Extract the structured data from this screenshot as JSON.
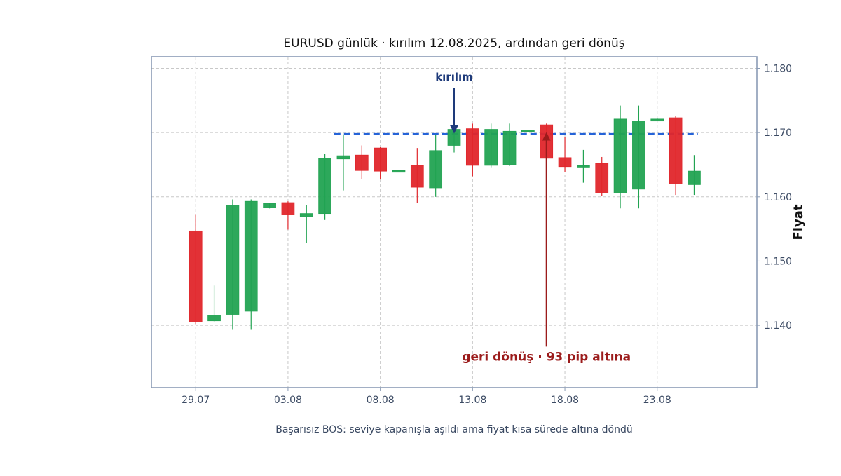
{
  "chart_data": {
    "type": "candlestick",
    "title": "EURUSD günlük · kırılım 12.08.2025, ardından geri dönüş",
    "subtitle": "Başarısız BOS: seviye kapanışla aşıldı ama fiyat kısa sürede altına döndü",
    "ylabel": "Fiyat",
    "xlabel": "",
    "ylim": [
      1.1303,
      1.1818
    ],
    "y_ticks": [
      1.14,
      1.15,
      1.16,
      1.17,
      1.18
    ],
    "y_tick_labels": [
      "1.140",
      "1.150",
      "1.160",
      "1.170",
      "1.180"
    ],
    "x_ticks": [
      "2025-07-29",
      "2025-08-03",
      "2025-08-08",
      "2025-08-13",
      "2025-08-18",
      "2025-08-23"
    ],
    "x_tick_labels": [
      "29.07",
      "03.08",
      "08.08",
      "13.08",
      "18.08",
      "23.08"
    ],
    "xlim": [
      "2025-07-26.6",
      "2025-08-28.4"
    ],
    "grid": true,
    "y_axis_side": "right",
    "colors": {
      "up": "#22a352",
      "down": "#e0262b",
      "level": "#2563d8",
      "breakout_annotation": "#1e3a7a",
      "reversal_annotation": "#9b1b1b",
      "frame": "#8a9bb5"
    },
    "candles": [
      {
        "date": "2025-07-29",
        "open": 1.1547,
        "high": 1.1573,
        "low": 1.1402,
        "close": 1.1405
      },
      {
        "date": "2025-07-30",
        "open": 1.1407,
        "high": 1.1462,
        "low": 1.1405,
        "close": 1.1416
      },
      {
        "date": "2025-07-31",
        "open": 1.1417,
        "high": 1.1596,
        "low": 1.1393,
        "close": 1.1587
      },
      {
        "date": "2025-08-01",
        "open": 1.1422,
        "high": 1.1596,
        "low": 1.1393,
        "close": 1.1593
      },
      {
        "date": "2025-08-02",
        "open": 1.1583,
        "high": 1.159,
        "low": 1.1582,
        "close": 1.159
      },
      {
        "date": "2025-08-03",
        "open": 1.1591,
        "high": 1.1593,
        "low": 1.1549,
        "close": 1.1573
      },
      {
        "date": "2025-08-04",
        "open": 1.1569,
        "high": 1.1587,
        "low": 1.1528,
        "close": 1.1574
      },
      {
        "date": "2025-08-05",
        "open": 1.1574,
        "high": 1.1667,
        "low": 1.1564,
        "close": 1.166
      },
      {
        "date": "2025-08-06",
        "open": 1.1659,
        "high": 1.1697,
        "low": 1.161,
        "close": 1.1664
      },
      {
        "date": "2025-08-07",
        "open": 1.1665,
        "high": 1.168,
        "low": 1.1628,
        "close": 1.1641
      },
      {
        "date": "2025-08-08",
        "open": 1.1676,
        "high": 1.1678,
        "low": 1.1627,
        "close": 1.164
      },
      {
        "date": "2025-08-09",
        "open": 1.1641,
        "high": 1.1642,
        "low": 1.1641,
        "close": 1.1641
      },
      {
        "date": "2025-08-10",
        "open": 1.1649,
        "high": 1.1676,
        "low": 1.159,
        "close": 1.1615
      },
      {
        "date": "2025-08-11",
        "open": 1.1614,
        "high": 1.1697,
        "low": 1.16,
        "close": 1.1672
      },
      {
        "date": "2025-08-12",
        "open": 1.168,
        "high": 1.1732,
        "low": 1.1669,
        "close": 1.1705
      },
      {
        "date": "2025-08-13",
        "open": 1.1706,
        "high": 1.1714,
        "low": 1.1632,
        "close": 1.1649
      },
      {
        "date": "2025-08-14",
        "open": 1.1649,
        "high": 1.1714,
        "low": 1.1646,
        "close": 1.1705
      },
      {
        "date": "2025-08-15",
        "open": 1.165,
        "high": 1.1714,
        "low": 1.1648,
        "close": 1.1702
      },
      {
        "date": "2025-08-16",
        "open": 1.1703,
        "high": 1.1704,
        "low": 1.1703,
        "close": 1.1704
      },
      {
        "date": "2025-08-17",
        "open": 1.1712,
        "high": 1.1714,
        "low": 1.166,
        "close": 1.166
      },
      {
        "date": "2025-08-18",
        "open": 1.1661,
        "high": 1.1693,
        "low": 1.1638,
        "close": 1.1647
      },
      {
        "date": "2025-08-19",
        "open": 1.1648,
        "high": 1.1673,
        "low": 1.1622,
        "close": 1.1649
      },
      {
        "date": "2025-08-20",
        "open": 1.1652,
        "high": 1.1662,
        "low": 1.1601,
        "close": 1.1606
      },
      {
        "date": "2025-08-21",
        "open": 1.1606,
        "high": 1.1742,
        "low": 1.1582,
        "close": 1.1721
      },
      {
        "date": "2025-08-22",
        "open": 1.1612,
        "high": 1.1742,
        "low": 1.1582,
        "close": 1.1718
      },
      {
        "date": "2025-08-23",
        "open": 1.1718,
        "high": 1.1722,
        "low": 1.1718,
        "close": 1.1721
      },
      {
        "date": "2025-08-24",
        "open": 1.1723,
        "high": 1.1726,
        "low": 1.1603,
        "close": 1.162
      },
      {
        "date": "2025-08-25",
        "open": 1.1619,
        "high": 1.1665,
        "low": 1.1603,
        "close": 1.164
      }
    ],
    "level": {
      "value": 1.1698,
      "from": "2025-08-05.5",
      "to": "2025-08-25.2",
      "style": "dashed"
    },
    "annotations": [
      {
        "text": "kırılım",
        "arrow_from": {
          "x": "2025-08-12",
          "y": 1.177
        },
        "arrow_to": {
          "x": "2025-08-12",
          "y": 1.1701
        }
      },
      {
        "text": "geri dönüş · 93 pip altına",
        "arrow_from": {
          "x": "2025-08-17",
          "y": 1.1367
        },
        "arrow_to": {
          "x": "2025-08-17",
          "y": 1.1698
        }
      }
    ]
  }
}
